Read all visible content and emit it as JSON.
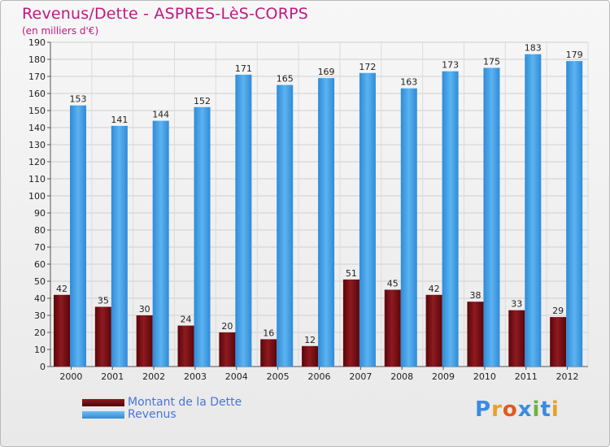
{
  "title": "Revenus/Dette - ASPRES-LèS-CORPS",
  "subtitle": "(en milliers d'€)",
  "logo": {
    "text": "Proxiti",
    "letters": [
      "P",
      "r",
      "o",
      "x",
      "i",
      "t",
      "i"
    ],
    "colors": [
      "#3b8be0",
      "#e6a22a",
      "#e05a1e",
      "#3b8be0",
      "#6db33f",
      "#3b8be0",
      "#e6a22a"
    ]
  },
  "colors": {
    "dette": "#7a0d12",
    "revenus": "#3d9be3",
    "title": "#c2187f"
  },
  "chart_data": {
    "type": "bar",
    "title": "Revenus/Dette - ASPRES-LèS-CORPS",
    "ylabel": "(en milliers d'€)",
    "categories": [
      "2000",
      "2001",
      "2002",
      "2003",
      "2004",
      "2005",
      "2006",
      "2007",
      "2008",
      "2009",
      "2010",
      "2011",
      "2012"
    ],
    "series": [
      {
        "name": "Montant de la Dette",
        "values": [
          42,
          35,
          30,
          24,
          20,
          16,
          12,
          51,
          45,
          42,
          38,
          33,
          29
        ]
      },
      {
        "name": "Revenus",
        "values": [
          153,
          141,
          144,
          152,
          171,
          165,
          169,
          172,
          163,
          173,
          175,
          183,
          179
        ]
      }
    ],
    "ylim": [
      0,
      190
    ],
    "yticks": [
      0,
      10,
      20,
      30,
      40,
      50,
      60,
      70,
      80,
      90,
      100,
      110,
      120,
      130,
      140,
      150,
      160,
      170,
      180,
      190
    ],
    "grid": true,
    "legend": "bottom-left"
  }
}
